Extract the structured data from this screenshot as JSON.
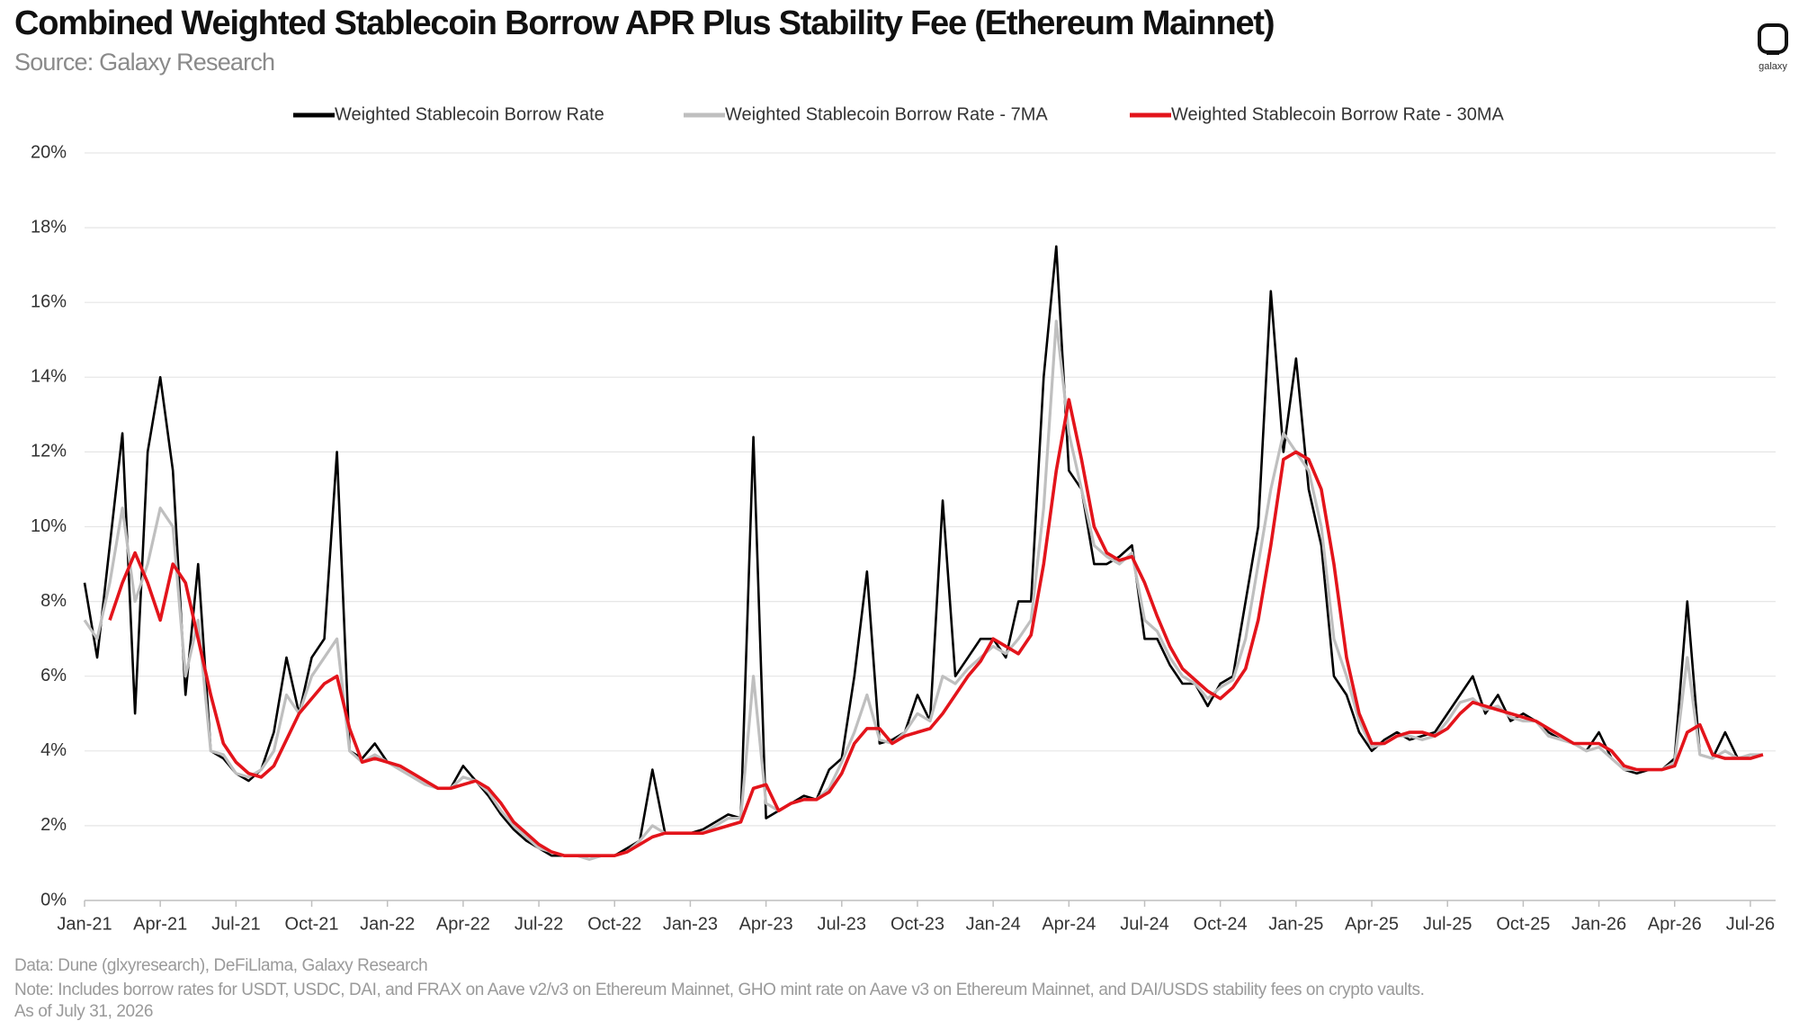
{
  "chart_data": {
    "type": "line",
    "title": "Combined Weighted Stablecoin Borrow APR Plus Stability Fee (Ethereum Mainnet)",
    "subtitle": "Source: Galaxy Research",
    "logo": "galaxy",
    "footnotes": [
      "Data: Dune (glxyresearch), DeFiLlama, Galaxy Research",
      "Note: Includes borrow rates for USDT, USDC, DAI, and FRAX on Aave v2/v3 on Ethereum Mainnet, GHO mint rate on Aave v3 on Ethereum Mainnet, and DAI/USDS stability fees on crypto vaults.",
      "As of July 31, 2026"
    ],
    "legend": "top",
    "grid": true,
    "ylim": [
      0,
      20
    ],
    "yticks": [
      {
        "value": 0,
        "label": "0%"
      },
      {
        "value": 2,
        "label": "2%"
      },
      {
        "value": 4,
        "label": "4%"
      },
      {
        "value": 6,
        "label": "6%"
      },
      {
        "value": 8,
        "label": "8%"
      },
      {
        "value": 10,
        "label": "10%"
      },
      {
        "value": 12,
        "label": "12%"
      },
      {
        "value": 14,
        "label": "14%"
      },
      {
        "value": 16,
        "label": "16%"
      },
      {
        "value": 18,
        "label": "18%"
      },
      {
        "value": 20,
        "label": "20%"
      }
    ],
    "categories": [
      "Jan-21",
      null,
      null,
      null,
      null,
      null,
      "Apr-21",
      null,
      null,
      null,
      null,
      null,
      "Jul-21",
      null,
      null,
      null,
      null,
      null,
      "Oct-21",
      null,
      null,
      null,
      null,
      null,
      "Jan-22",
      null,
      null,
      null,
      null,
      null,
      "Apr-22",
      null,
      null,
      null,
      null,
      null,
      "Jul-22",
      null,
      null,
      null,
      null,
      null,
      "Oct-22",
      null,
      null,
      null,
      null,
      null,
      "Jan-23",
      null,
      null,
      null,
      null,
      null,
      "Apr-23",
      null,
      null,
      null,
      null,
      null,
      "Jul-23",
      null,
      null,
      null,
      null,
      null,
      "Oct-23",
      null,
      null,
      null,
      null,
      null,
      "Jan-24",
      null,
      null,
      null,
      null,
      null,
      "Apr-24",
      null,
      null,
      null,
      null,
      null,
      "Jul-24",
      null,
      null,
      null,
      null,
      null,
      "Oct-24",
      null,
      null,
      null,
      null,
      null,
      "Jan-25",
      null,
      null,
      null,
      null,
      null,
      "Apr-25",
      null,
      null,
      null,
      null,
      null,
      "Jul-25",
      null,
      null,
      null,
      null,
      null,
      "Oct-25",
      null,
      null,
      null,
      null,
      null,
      "Jan-26",
      null,
      null,
      null,
      null,
      null,
      "Apr-26",
      null,
      null,
      null,
      null,
      null,
      "Jul-26",
      null
    ],
    "series": [
      {
        "name": "Weighted Stablecoin Borrow Rate",
        "color": "#000000",
        "values": [
          8.5,
          6.5,
          9.5,
          12.5,
          5.0,
          12.0,
          14.0,
          11.5,
          5.5,
          9.0,
          4.0,
          3.8,
          3.4,
          3.2,
          3.5,
          4.5,
          6.5,
          5.0,
          6.5,
          7.0,
          12.0,
          4.0,
          3.8,
          4.2,
          3.7,
          3.5,
          3.3,
          3.1,
          3.0,
          3.0,
          3.6,
          3.2,
          2.8,
          2.3,
          1.9,
          1.6,
          1.4,
          1.2,
          1.2,
          1.2,
          1.1,
          1.2,
          1.2,
          1.4,
          1.6,
          3.5,
          1.8,
          1.8,
          1.8,
          1.9,
          2.1,
          2.3,
          2.2,
          12.4,
          2.2,
          2.4,
          2.6,
          2.8,
          2.7,
          3.5,
          3.8,
          6.0,
          8.8,
          4.2,
          4.3,
          4.5,
          5.5,
          4.8,
          10.7,
          6.0,
          6.5,
          7.0,
          7.0,
          6.5,
          8.0,
          8.0,
          14.0,
          17.5,
          11.5,
          11.0,
          9.0,
          9.0,
          9.2,
          9.5,
          7.0,
          7.0,
          6.3,
          5.8,
          5.8,
          5.2,
          5.8,
          6.0,
          8.0,
          10.0,
          16.3,
          12.0,
          14.5,
          11.0,
          9.5,
          6.0,
          5.5,
          4.5,
          4.0,
          4.3,
          4.5,
          4.3,
          4.4,
          4.5,
          5.0,
          5.5,
          6.0,
          5.0,
          5.5,
          4.8,
          5.0,
          4.8,
          4.5,
          4.3,
          4.2,
          4.0,
          4.5,
          3.8,
          3.5,
          3.4,
          3.5,
          3.5,
          3.8,
          8.0,
          3.9,
          3.8,
          4.5,
          3.8,
          3.9,
          3.9
        ]
      },
      {
        "name": "Weighted Stablecoin Borrow Rate - 7MA",
        "color": "#bfbfbf",
        "values": [
          7.5,
          7.0,
          8.5,
          10.5,
          8.0,
          9.0,
          10.5,
          10.0,
          6.0,
          7.5,
          4.0,
          3.9,
          3.4,
          3.3,
          3.5,
          4.0,
          5.5,
          5.0,
          6.0,
          6.5,
          7.0,
          4.0,
          3.7,
          3.9,
          3.7,
          3.5,
          3.3,
          3.1,
          3.0,
          3.0,
          3.3,
          3.2,
          2.9,
          2.4,
          2.0,
          1.7,
          1.4,
          1.3,
          1.2,
          1.2,
          1.1,
          1.2,
          1.2,
          1.3,
          1.6,
          2.0,
          1.8,
          1.8,
          1.8,
          1.8,
          2.0,
          2.2,
          2.2,
          6.0,
          2.6,
          2.4,
          2.6,
          2.7,
          2.7,
          3.0,
          3.7,
          4.5,
          5.5,
          4.3,
          4.2,
          4.5,
          5.0,
          4.8,
          6.0,
          5.8,
          6.2,
          6.5,
          6.8,
          6.6,
          7.0,
          7.5,
          10.5,
          15.5,
          12.5,
          11.0,
          9.5,
          9.2,
          9.0,
          9.3,
          7.5,
          7.2,
          6.5,
          6.0,
          5.8,
          5.4,
          5.7,
          5.9,
          7.0,
          9.0,
          11.0,
          12.5,
          12.0,
          11.5,
          10.0,
          7.0,
          6.0,
          4.8,
          4.1,
          4.2,
          4.4,
          4.4,
          4.3,
          4.4,
          4.8,
          5.3,
          5.4,
          5.1,
          5.2,
          4.9,
          4.8,
          4.8,
          4.4,
          4.3,
          4.2,
          4.0,
          4.1,
          3.8,
          3.5,
          3.5,
          3.5,
          3.5,
          3.7,
          6.5,
          3.9,
          3.8,
          4.0,
          3.8,
          3.9,
          3.9
        ]
      },
      {
        "name": "Weighted Stablecoin Borrow Rate - 30MA",
        "color": "#e3141b",
        "values": [
          null,
          null,
          7.5,
          8.5,
          9.3,
          8.5,
          7.5,
          9.0,
          8.5,
          7.0,
          5.5,
          4.2,
          3.7,
          3.4,
          3.3,
          3.6,
          4.3,
          5.0,
          5.4,
          5.8,
          6.0,
          4.6,
          3.7,
          3.8,
          3.7,
          3.6,
          3.4,
          3.2,
          3.0,
          3.0,
          3.1,
          3.2,
          3.0,
          2.6,
          2.1,
          1.8,
          1.5,
          1.3,
          1.2,
          1.2,
          1.2,
          1.2,
          1.2,
          1.3,
          1.5,
          1.7,
          1.8,
          1.8,
          1.8,
          1.8,
          1.9,
          2.0,
          2.1,
          3.0,
          3.1,
          2.4,
          2.6,
          2.7,
          2.7,
          2.9,
          3.4,
          4.2,
          4.6,
          4.6,
          4.2,
          4.4,
          4.5,
          4.6,
          5.0,
          5.5,
          6.0,
          6.4,
          7.0,
          6.8,
          6.6,
          7.1,
          9.0,
          11.5,
          13.4,
          11.8,
          10.0,
          9.3,
          9.1,
          9.2,
          8.5,
          7.6,
          6.8,
          6.2,
          5.9,
          5.6,
          5.4,
          5.7,
          6.2,
          7.5,
          9.5,
          11.8,
          12.0,
          11.8,
          11.0,
          9.0,
          6.5,
          5.0,
          4.2,
          4.2,
          4.4,
          4.5,
          4.5,
          4.4,
          4.6,
          5.0,
          5.3,
          5.2,
          5.1,
          5.0,
          4.9,
          4.8,
          4.6,
          4.4,
          4.2,
          4.2,
          4.2,
          4.0,
          3.6,
          3.5,
          3.5,
          3.5,
          3.6,
          4.5,
          4.7,
          3.9,
          3.8,
          3.8,
          3.8,
          3.9
        ]
      }
    ]
  }
}
